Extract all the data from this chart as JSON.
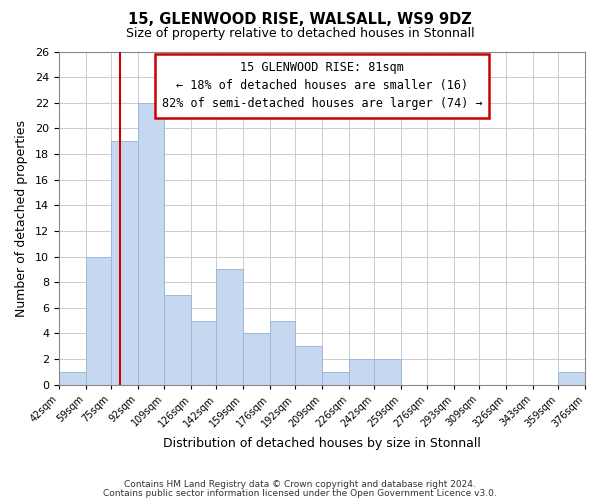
{
  "title": "15, GLENWOOD RISE, WALSALL, WS9 9DZ",
  "subtitle": "Size of property relative to detached houses in Stonnall",
  "xlabel": "Distribution of detached houses by size in Stonnall",
  "ylabel": "Number of detached properties",
  "bar_edges": [
    42,
    59,
    75,
    92,
    109,
    126,
    142,
    159,
    176,
    192,
    209,
    226,
    242,
    259,
    276,
    293,
    309,
    326,
    343,
    359,
    376
  ],
  "bar_heights": [
    1,
    10,
    19,
    22,
    7,
    5,
    9,
    4,
    5,
    3,
    1,
    2,
    2,
    0,
    0,
    0,
    0,
    0,
    0,
    1
  ],
  "bar_color": "#c5d8f0",
  "bar_edge_color": "#a0b8d8",
  "property_line_x": 81,
  "property_line_color": "#cc0000",
  "ylim": [
    0,
    26
  ],
  "yticks": [
    0,
    2,
    4,
    6,
    8,
    10,
    12,
    14,
    16,
    18,
    20,
    22,
    24,
    26
  ],
  "annotation_title": "15 GLENWOOD RISE: 81sqm",
  "annotation_line1": "← 18% of detached houses are smaller (16)",
  "annotation_line2": "82% of semi-detached houses are larger (74) →",
  "footer1": "Contains HM Land Registry data © Crown copyright and database right 2024.",
  "footer2": "Contains public sector information licensed under the Open Government Licence v3.0.",
  "background_color": "#ffffff",
  "grid_color": "#cccccc"
}
